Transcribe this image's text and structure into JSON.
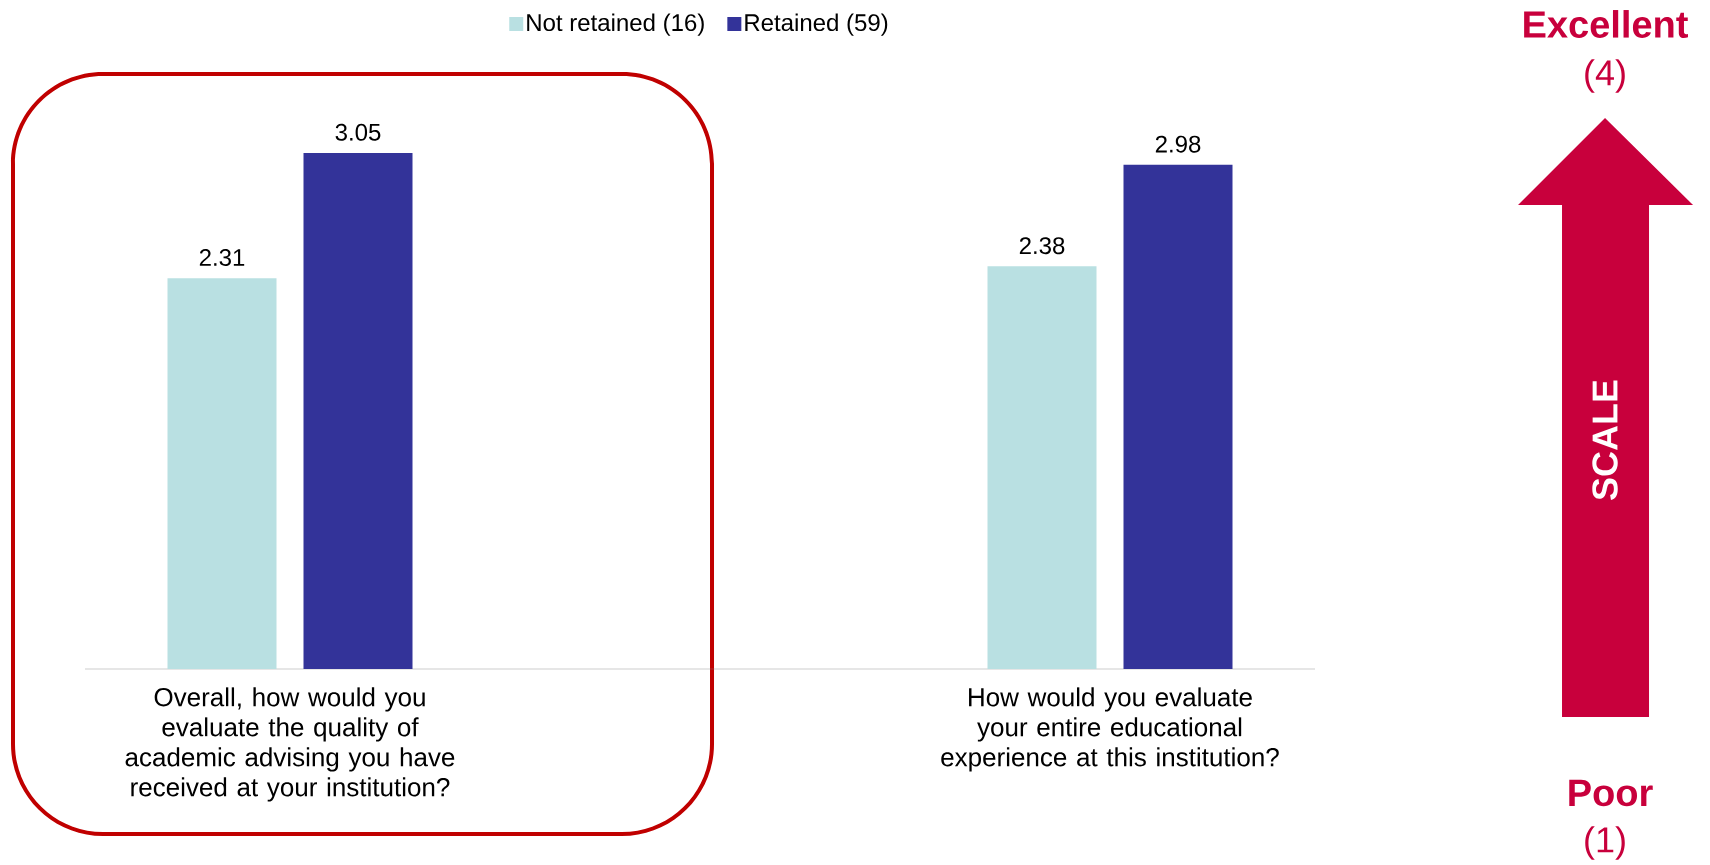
{
  "chart_data": {
    "type": "bar",
    "categories": [
      "Overall, how would you evaluate the quality of academic advising you have received at your institution?",
      "How would you evaluate your entire educational experience at this institution?"
    ],
    "series": [
      {
        "name": "Not retained (16)",
        "color": "#b9e0e2",
        "values": [
          2.31,
          2.38
        ]
      },
      {
        "name": "Retained (59)",
        "color": "#333399",
        "values": [
          3.05,
          2.98
        ]
      }
    ],
    "ylim": [
      0,
      3.05
    ],
    "data_labels": true,
    "legend": "top",
    "annotations": [
      "Excellent",
      "(4)",
      "SCALE",
      "Poor",
      "(1)"
    ]
  }
}
